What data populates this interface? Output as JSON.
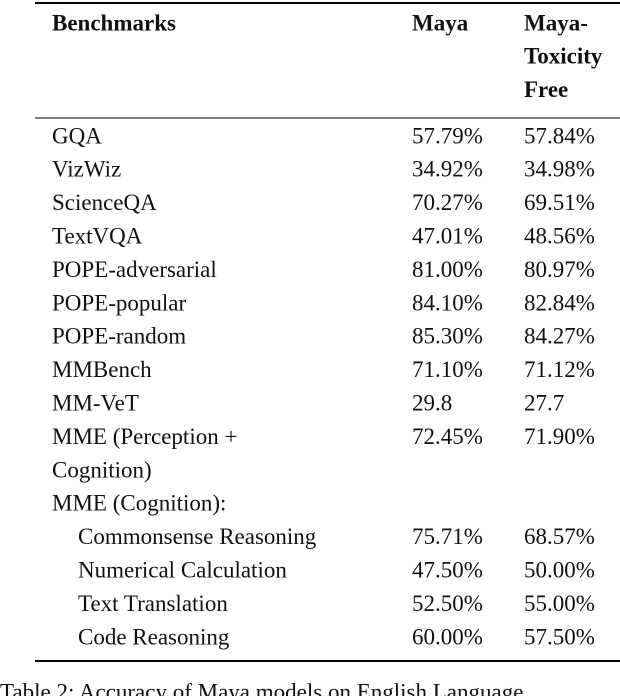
{
  "table": {
    "header": [
      [
        "Benchmarks"
      ],
      [
        "Maya"
      ],
      [
        "Maya-",
        "Toxicity",
        "Free"
      ]
    ],
    "rows": [
      {
        "label": [
          "GQA"
        ],
        "values": [
          "57.79%",
          "57.84%"
        ]
      },
      {
        "label": [
          "VizWiz"
        ],
        "values": [
          "34.92%",
          "34.98%"
        ]
      },
      {
        "label": [
          "ScienceQA"
        ],
        "values": [
          "70.27%",
          "69.51%"
        ]
      },
      {
        "label": [
          "TextVQA"
        ],
        "values": [
          "47.01%",
          "48.56%"
        ]
      },
      {
        "label": [
          "POPE-adversarial"
        ],
        "values": [
          "81.00%",
          "80.97%"
        ]
      },
      {
        "label": [
          "POPE-popular"
        ],
        "values": [
          "84.10%",
          "82.84%"
        ]
      },
      {
        "label": [
          "POPE-random"
        ],
        "values": [
          "85.30%",
          "84.27%"
        ]
      },
      {
        "label": [
          "MMBench"
        ],
        "values": [
          "71.10%",
          "71.12%"
        ]
      },
      {
        "label": [
          "MM-VeT"
        ],
        "values": [
          "29.8",
          "27.7"
        ]
      },
      {
        "label": [
          "MME (Perception +",
          "Cognition)"
        ],
        "values": [
          "72.45%",
          "71.90%"
        ]
      }
    ],
    "group": {
      "label": "MME (Cognition):",
      "rows": [
        {
          "label": "Commonsense Reasoning",
          "values": [
            "75.71%",
            "68.57%"
          ]
        },
        {
          "label": "Numerical Calculation",
          "values": [
            "47.50%",
            "50.00%"
          ]
        },
        {
          "label": "Text Translation",
          "values": [
            "52.50%",
            "55.00%"
          ]
        },
        {
          "label": "Code Reasoning",
          "values": [
            "60.00%",
            "57.50%"
          ]
        }
      ]
    }
  },
  "caption": "Table 2: Accuracy of Maya models on English Language"
}
